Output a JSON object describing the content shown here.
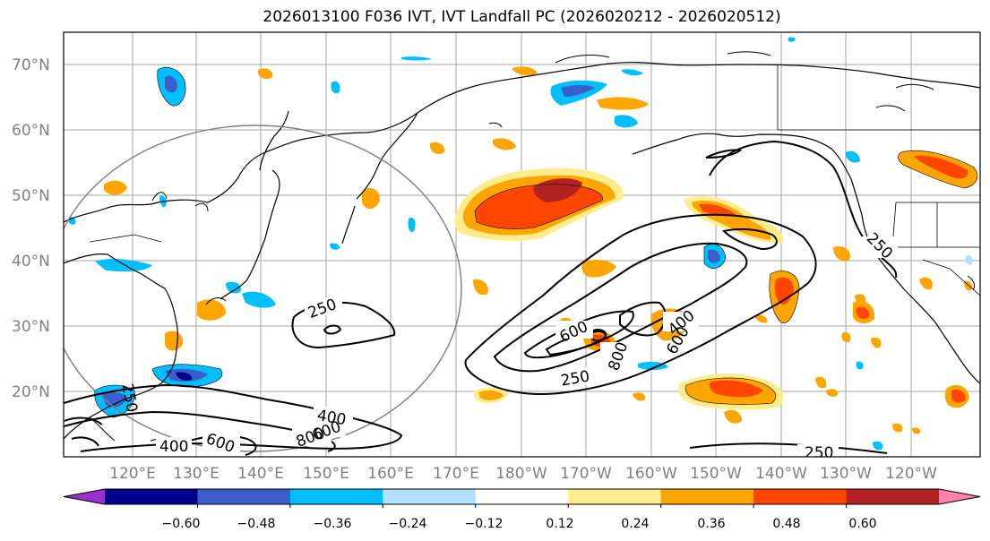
{
  "title": "2026013100 F036 IVT, IVT Landfall PC (2026020212 - 2026020512)",
  "lat_labels": [
    "70°N",
    "60°N",
    "50°N",
    "40°N",
    "30°N",
    "20°N"
  ],
  "lon_labels": [
    "120°E",
    "130°E",
    "140°E",
    "150°E",
    "160°E",
    "170°E",
    "180°W",
    "170°W",
    "160°W",
    "150°W",
    "140°W",
    "130°W",
    "120°W"
  ],
  "contour_labels": [
    "250",
    "250",
    "250",
    "250",
    "400",
    "400",
    "400",
    "600",
    "600",
    "600",
    "600",
    "800",
    "800",
    "250"
  ],
  "colorbar": {
    "tick_labels": [
      "−0.60",
      "−0.48",
      "−0.36",
      "−0.24",
      "−0.12",
      "0.12",
      "0.24",
      "0.36",
      "0.48",
      "0.60"
    ],
    "colors": [
      "#9932cc",
      "#00008b",
      "#3a5fcd",
      "#00bfff",
      "#b0e2ff",
      "#ffffff",
      "#ffec8b",
      "#ffa500",
      "#ff4500",
      "#b22222",
      "#ff82ab"
    ]
  }
}
